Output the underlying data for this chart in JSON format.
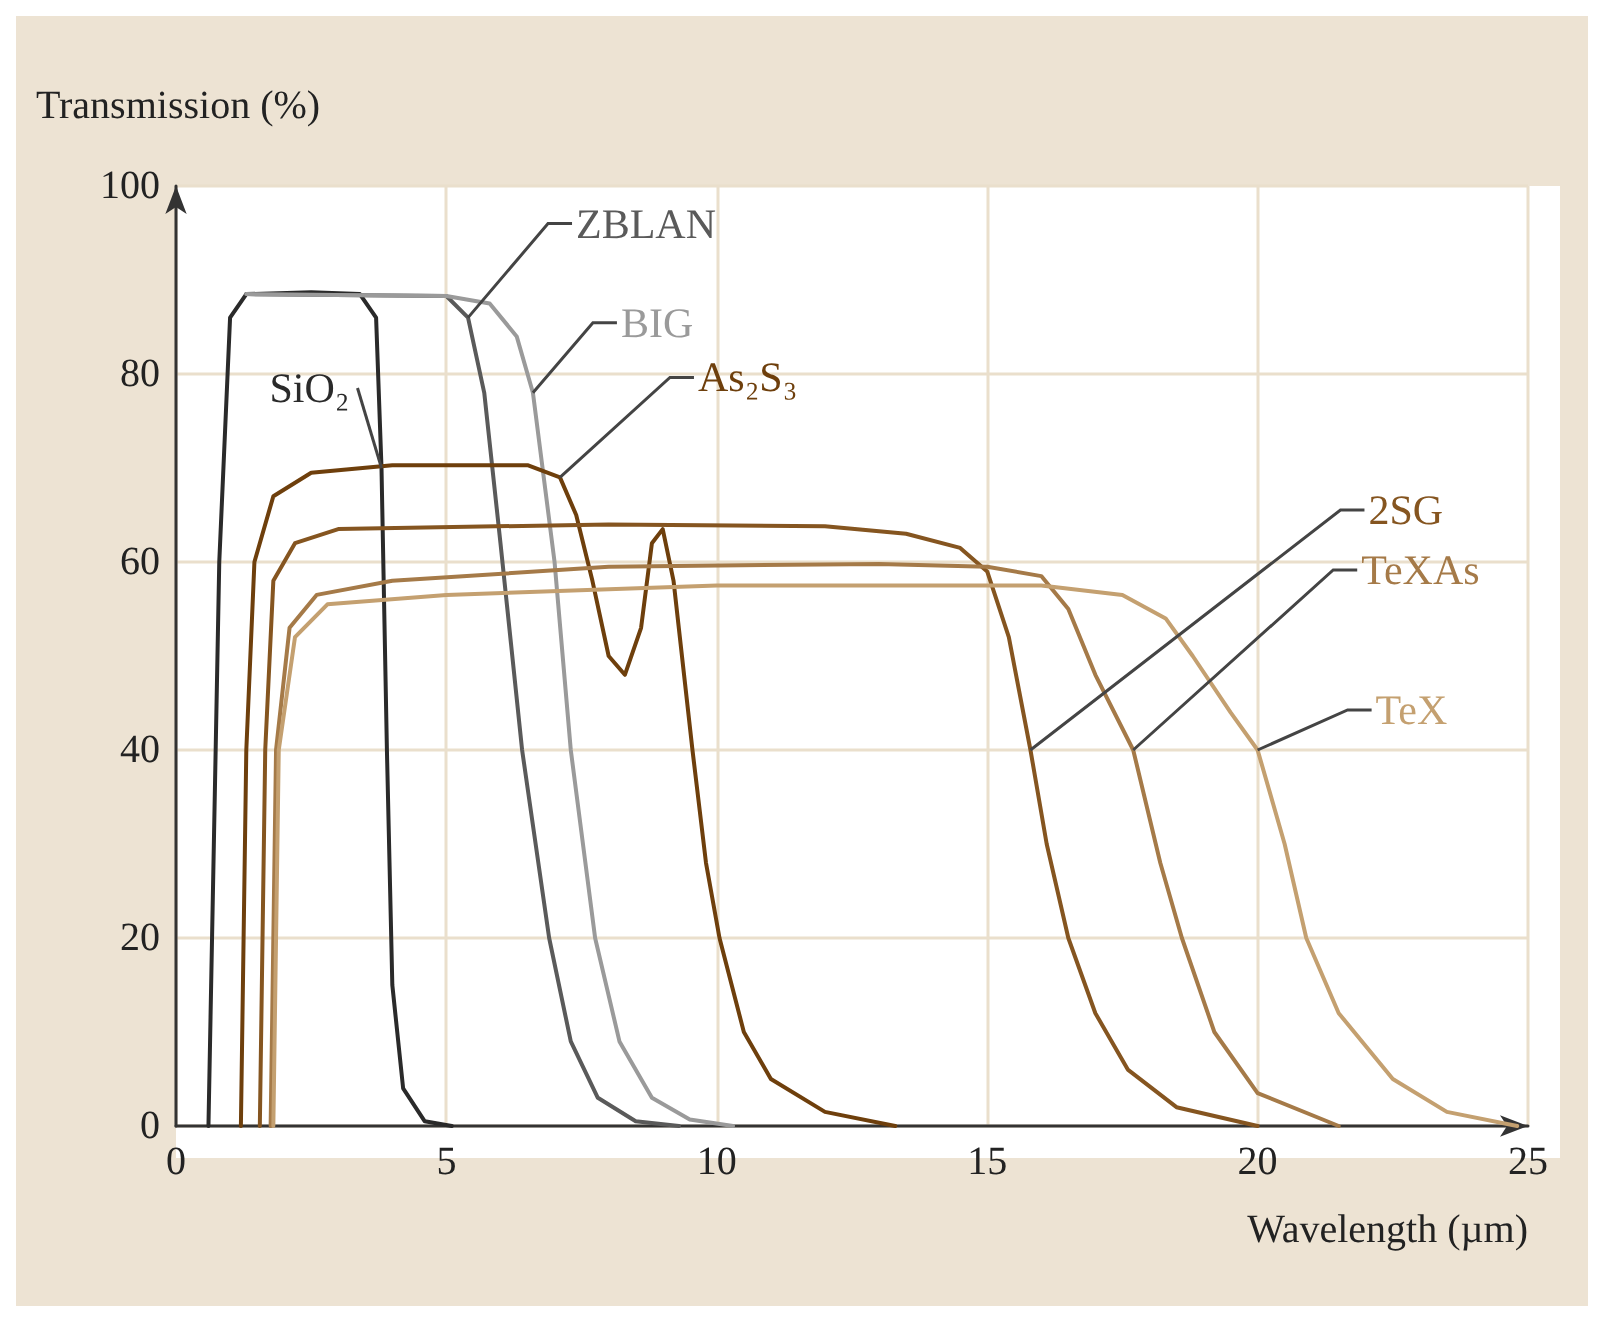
{
  "chart_data": {
    "type": "line",
    "xlabel": "Wavelength (µm)",
    "ylabel": "Transmission (%)",
    "xlim": [
      0,
      25
    ],
    "ylim": [
      0,
      100
    ],
    "xticks": [
      0,
      5,
      10,
      15,
      20,
      25
    ],
    "yticks": [
      0,
      20,
      40,
      60,
      80,
      100
    ],
    "grid": true,
    "marker": "none",
    "series": [
      {
        "name": "SiO₂",
        "color": "#2a2a2a",
        "x": [
          0.6,
          0.8,
          1.0,
          1.3,
          2.5,
          3.4,
          3.7,
          3.8,
          3.9,
          4.0,
          4.2,
          4.6,
          5.1
        ],
        "values": [
          0,
          60,
          86,
          88.5,
          88.7,
          88.5,
          86,
          70,
          40,
          15,
          4,
          0.5,
          0
        ]
      },
      {
        "name": "ZBLAN",
        "color": "#5a5a5a",
        "x": [
          1.3,
          5.0,
          5.4,
          5.7,
          6.0,
          6.4,
          6.9,
          7.3,
          7.8,
          8.5,
          9.3
        ],
        "values": [
          88.5,
          88.3,
          86,
          78,
          62,
          40,
          20,
          9,
          3,
          0.5,
          0
        ]
      },
      {
        "name": "BIG",
        "color": "#9a9a9a",
        "x": [
          1.3,
          5.0,
          5.8,
          6.3,
          6.6,
          7.0,
          7.3,
          7.75,
          8.2,
          8.8,
          9.5,
          10.3
        ],
        "values": [
          88.5,
          88.3,
          87.5,
          84,
          78,
          60,
          40,
          20,
          9,
          3,
          0.7,
          0
        ]
      },
      {
        "name": "As₂S₃",
        "color": "#6e3f0c",
        "x": [
          1.2,
          1.3,
          1.45,
          1.8,
          2.5,
          4,
          6.5,
          7.1,
          7.4,
          7.7,
          8.0,
          8.3,
          8.6,
          8.8,
          9.0,
          9.2,
          9.55,
          9.8,
          10.05,
          10.5,
          11,
          12,
          13.3
        ],
        "values": [
          0,
          40,
          60,
          67,
          69.5,
          70.3,
          70.3,
          69,
          65,
          58,
          50,
          48,
          53,
          62,
          63.5,
          58,
          40,
          28,
          20,
          10,
          5,
          1.5,
          0
        ]
      },
      {
        "name": "2SG",
        "color": "#855520",
        "x": [
          1.55,
          1.65,
          1.8,
          2.2,
          3,
          8,
          12,
          13.5,
          14.5,
          15,
          15.4,
          15.8,
          16.1,
          16.5,
          17,
          17.6,
          18.5,
          20
        ],
        "values": [
          0,
          40,
          58,
          62,
          63.5,
          64,
          63.8,
          63,
          61.5,
          59,
          52,
          40,
          30,
          20,
          12,
          6,
          2,
          0
        ]
      },
      {
        "name": "TeXAs",
        "color": "#a57a48",
        "x": [
          1.75,
          1.85,
          2.1,
          2.6,
          4,
          8,
          13,
          15,
          16,
          16.5,
          17,
          17.7,
          18.2,
          18.6,
          19.2,
          20,
          21.5
        ],
        "values": [
          0,
          40,
          53,
          56.5,
          58,
          59.5,
          59.8,
          59.5,
          58.5,
          55,
          48,
          40,
          28,
          20,
          10,
          3.5,
          0
        ]
      },
      {
        "name": "TeX",
        "color": "#c4a070",
        "x": [
          1.8,
          1.9,
          2.2,
          2.8,
          5,
          10,
          16,
          17.5,
          18.3,
          18.8,
          19.5,
          20,
          20.5,
          20.9,
          21.5,
          22.5,
          23.5,
          24.8
        ],
        "values": [
          0,
          40,
          52,
          55.5,
          56.5,
          57.5,
          57.5,
          56.5,
          54,
          50,
          44,
          40,
          30,
          20,
          12,
          5,
          1.5,
          0
        ]
      }
    ]
  }
}
